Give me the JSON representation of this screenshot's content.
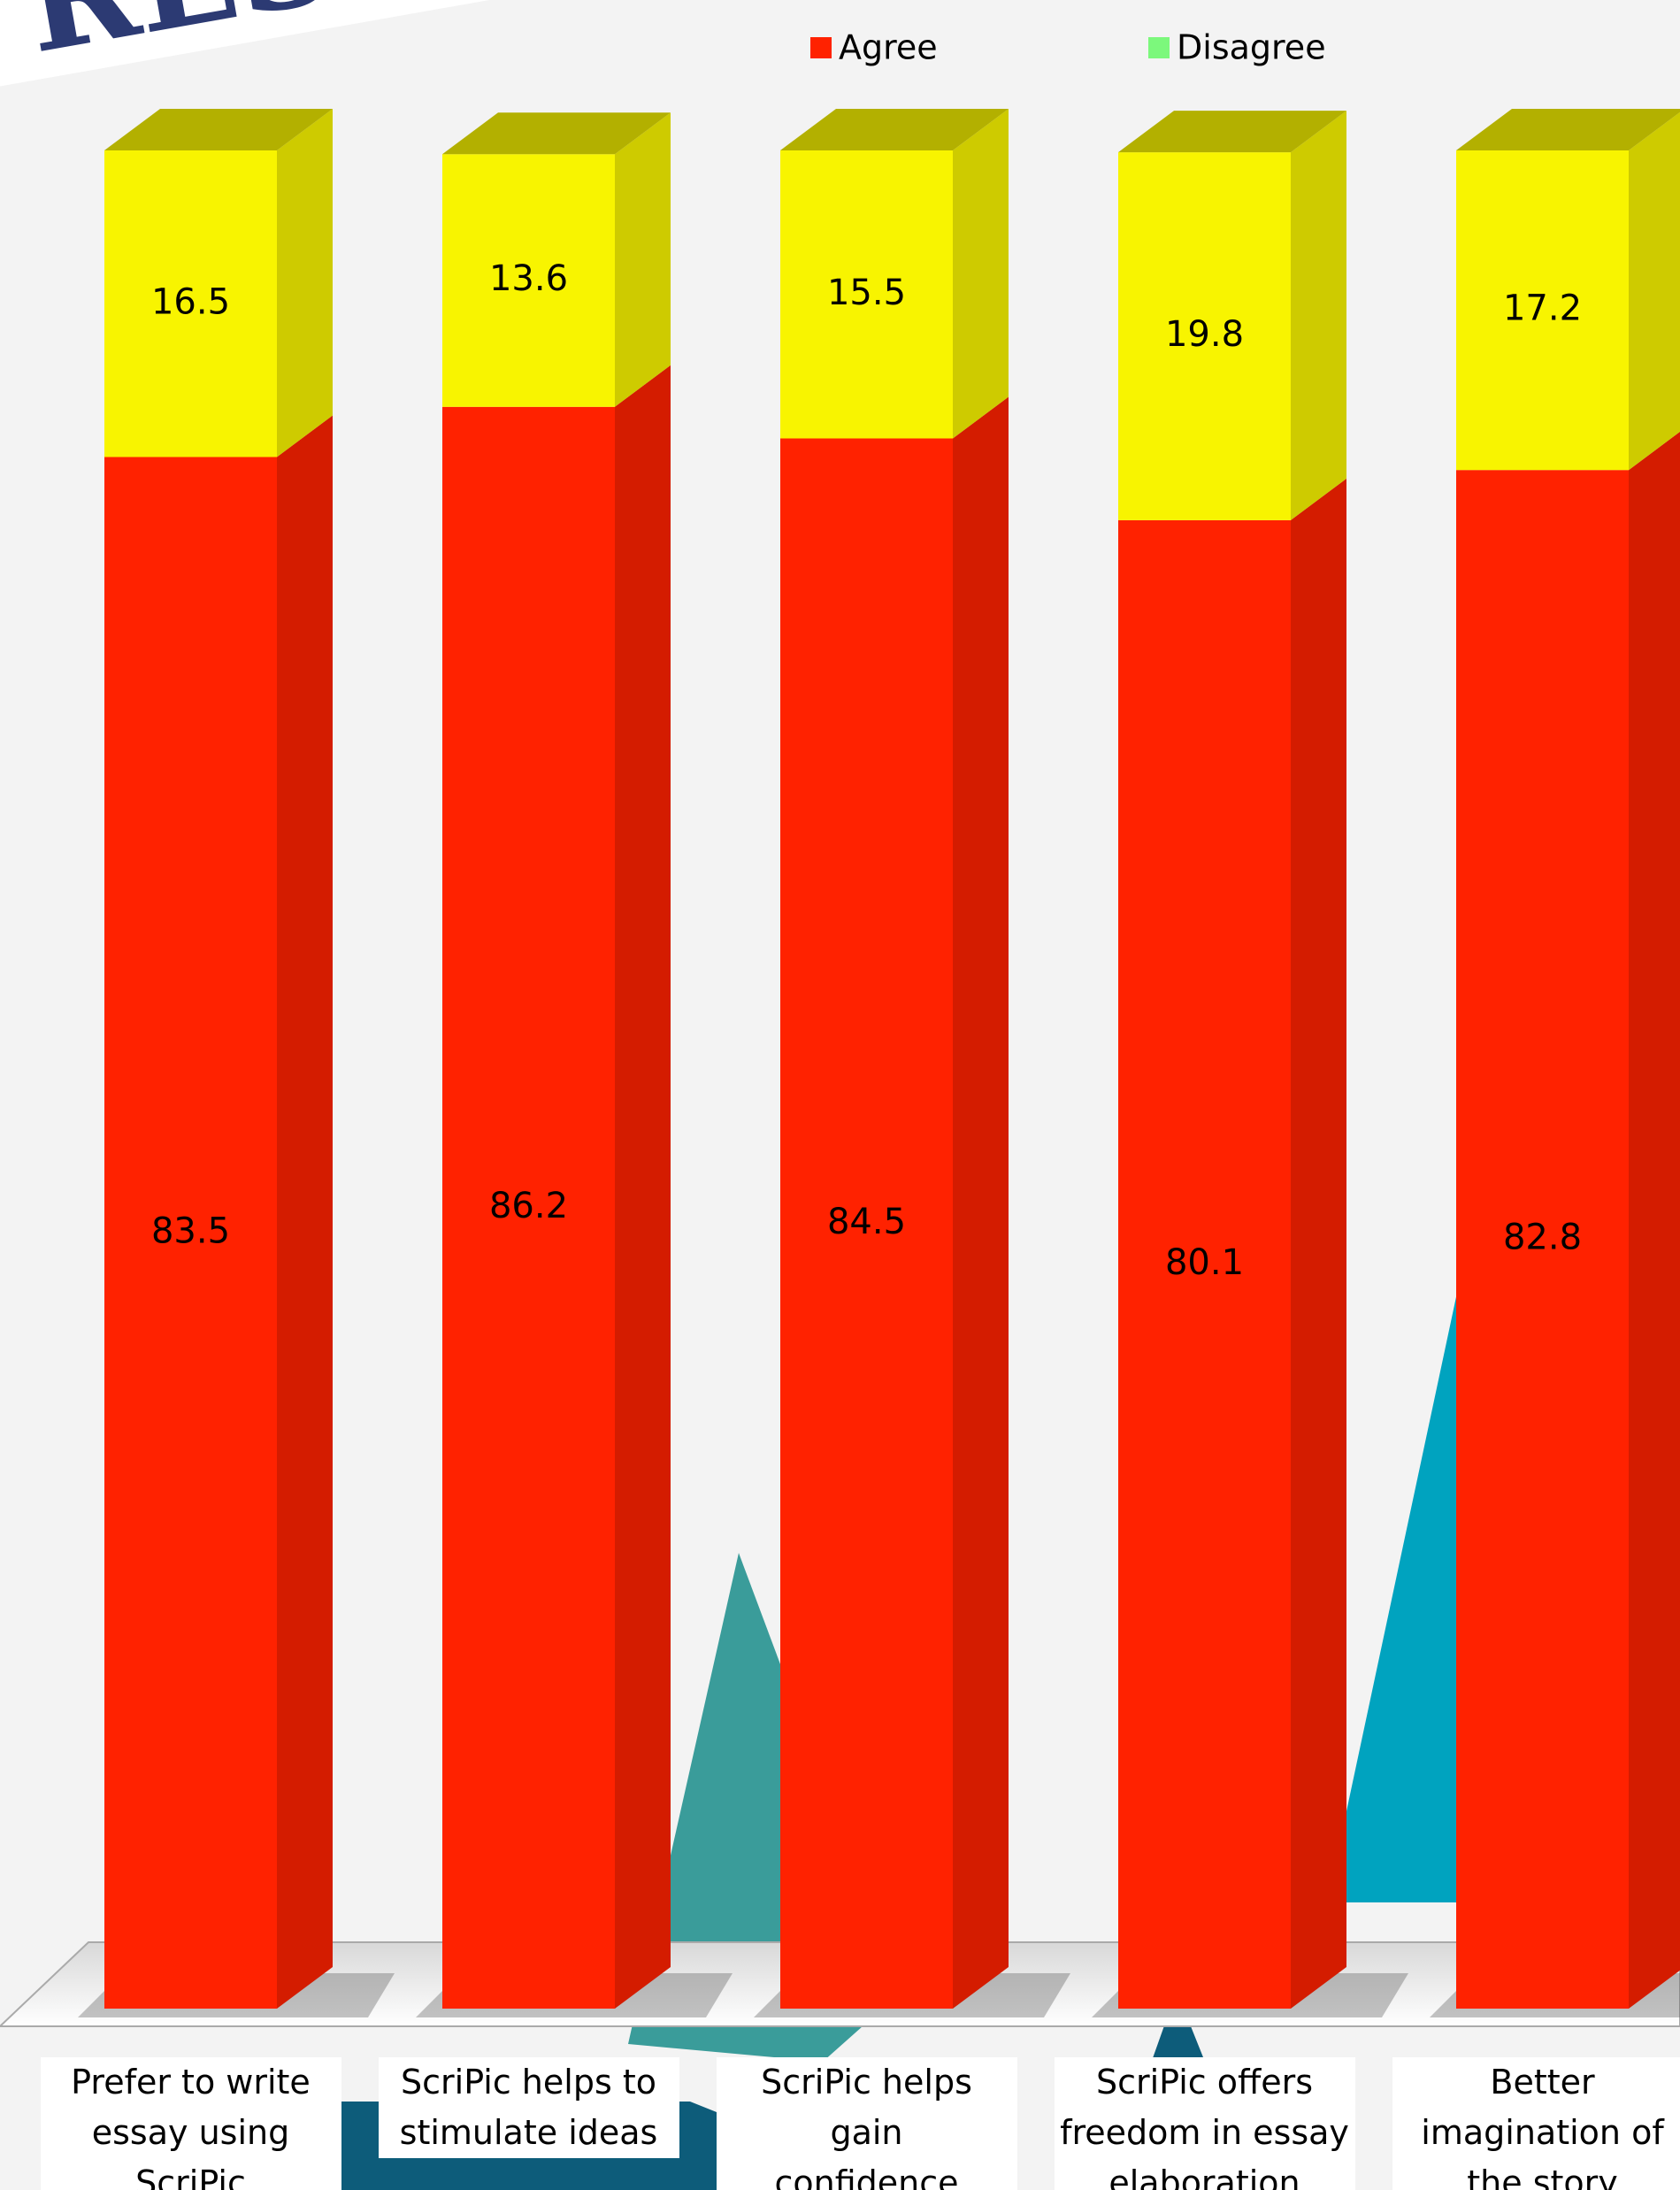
{
  "chart_data": {
    "type": "stacked_bar_3d",
    "stamp": "RESULTS",
    "categories": [
      "Prefer to write\nessay using\nScriPic",
      "ScriPic helps to\nstimulate ideas",
      "ScriPic helps gain\nconfidence",
      "ScriPic offers\nfreedom in essay\nelaboration",
      "Better\nimagination of\nthe story"
    ],
    "series": [
      {
        "name": "Agree",
        "color": "#ff2200",
        "legend_color": "#ff2200",
        "values": [
          83.5,
          86.2,
          84.5,
          80.1,
          82.8
        ]
      },
      {
        "name": "Disagree",
        "color": "#f8f400",
        "legend_color": "#7cf87c",
        "values": [
          16.5,
          13.6,
          15.5,
          19.8,
          17.2
        ]
      }
    ],
    "ylim": [
      0,
      100
    ]
  }
}
